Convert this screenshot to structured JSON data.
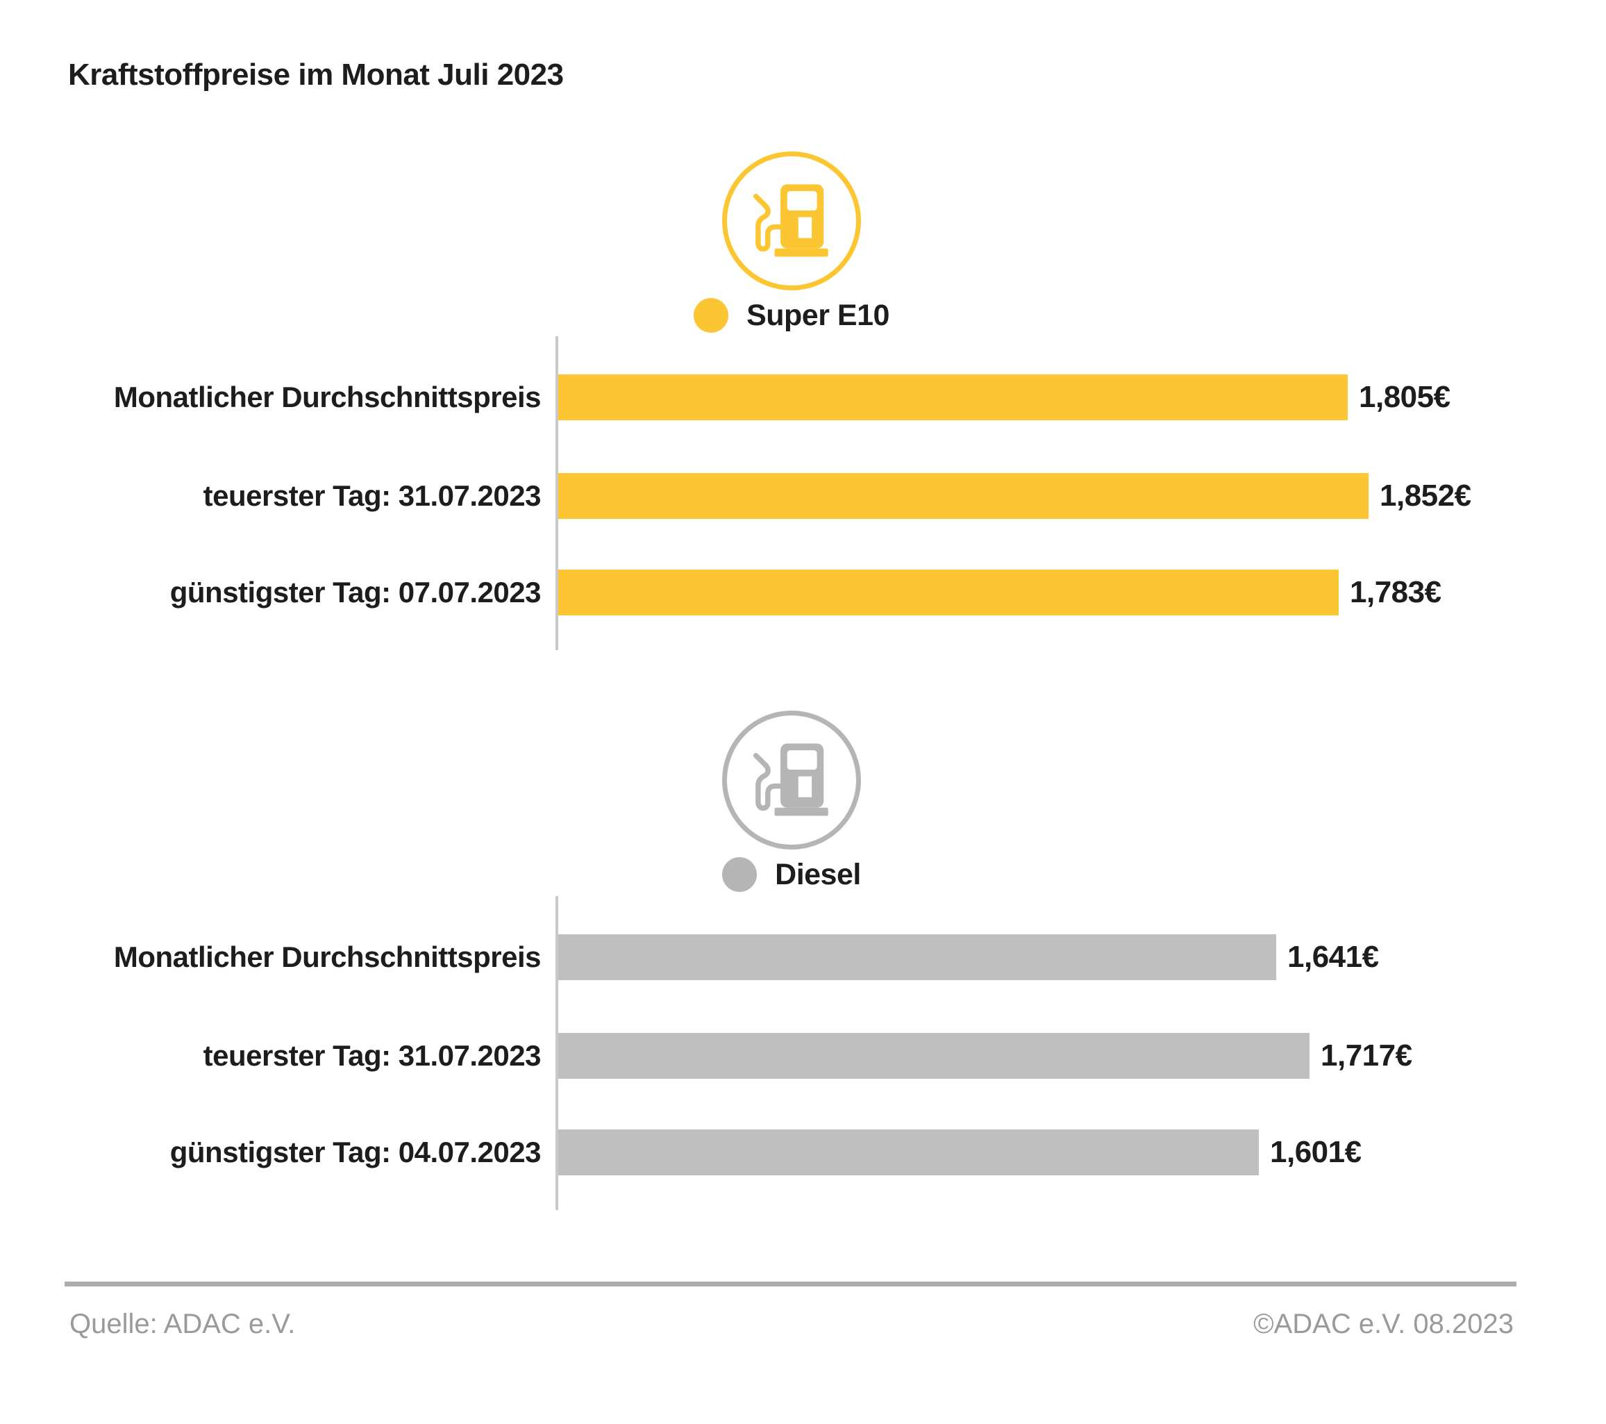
{
  "title": "Kraftstoffpreise im Monat Juli 2023",
  "colors": {
    "yellow": "#FCC633",
    "gray": "#BFBFBF",
    "icon_gray": "#B5B5B5",
    "axis": "#C9C9C9",
    "divider": "#ACACAC",
    "footer_text": "#9A9A9A",
    "text": "#1D1D1B"
  },
  "chart_data": [
    {
      "type": "bar",
      "orientation": "horizontal",
      "series_name": "Super E10",
      "icon": "fuel-pump-icon",
      "color_key": "yellow",
      "categories": [
        "Monatlicher Durchschnittspreis",
        "teuerster Tag: 31.07.2023",
        "günstigster Tag: 07.07.2023"
      ],
      "values": [
        1.805,
        1.852,
        1.783
      ],
      "value_labels": [
        "1,805€",
        "1,852€",
        "1,783€"
      ],
      "xlim": [
        0,
        1.852
      ],
      "grid": false,
      "legend_position": "top-center"
    },
    {
      "type": "bar",
      "orientation": "horizontal",
      "series_name": "Diesel",
      "icon": "fuel-pump-icon",
      "color_key": "gray",
      "categories": [
        "Monatlicher Durchschnittspreis",
        "teuerster Tag: 31.07.2023",
        "günstigster Tag: 04.07.2023"
      ],
      "values": [
        1.641,
        1.717,
        1.601
      ],
      "value_labels": [
        "1,641€",
        "1,717€",
        "1,601€"
      ],
      "xlim": [
        0,
        1.852
      ],
      "grid": false,
      "legend_position": "top-center"
    }
  ],
  "footer": {
    "source": "Quelle: ADAC e.V.",
    "copyright": "©ADAC e.V. 08.2023"
  }
}
